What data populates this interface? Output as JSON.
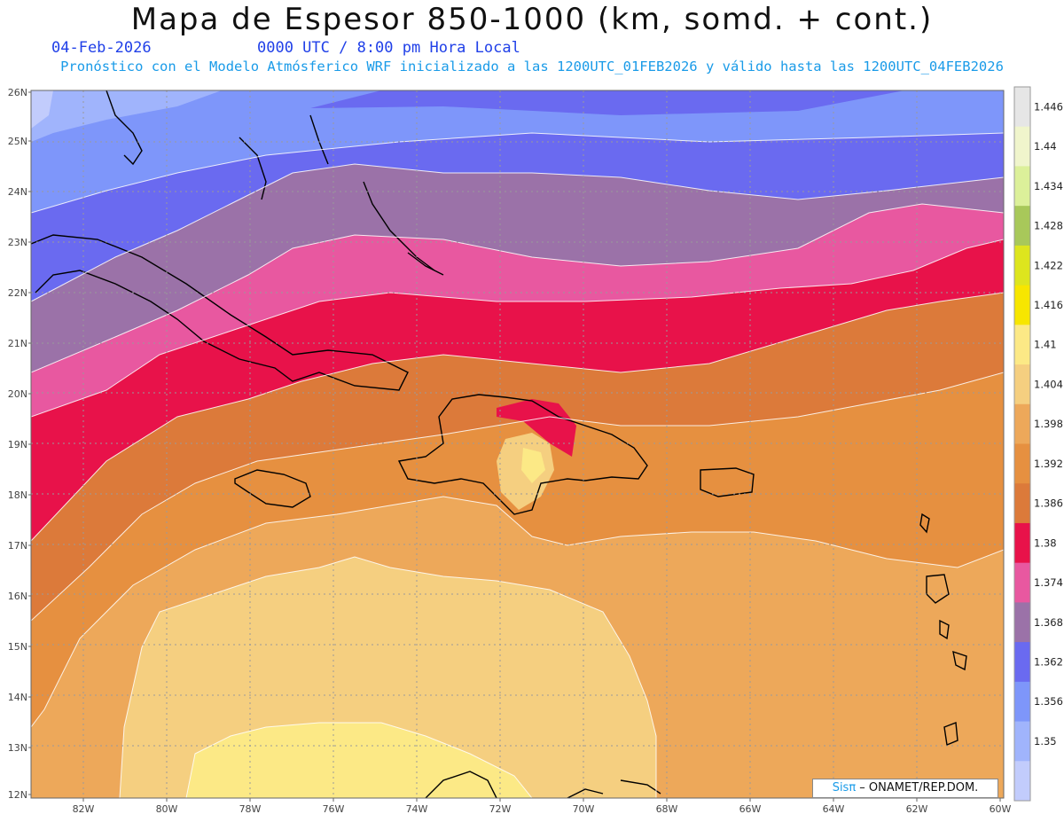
{
  "header": {
    "title": "Mapa de Espesor 850-1000 (km, somd. + cont.)",
    "date": "04-Feb-2026",
    "time": "0000 UTC / 8:00 pm Hora Local",
    "subtitle": "Pronóstico con el Modelo Atmósferico WRF inicializado a las 1200UTC_01FEB2026 y válido hasta las  1200UTC_04FEB2026"
  },
  "map": {
    "lat_labels": [
      "26N",
      "25N",
      "24N",
      "23N",
      "22N",
      "21N",
      "20N",
      "19N",
      "18N",
      "17N",
      "16N",
      "15N",
      "14N",
      "13N",
      "12N"
    ],
    "lon_labels": [
      "82W",
      "80W",
      "78W",
      "76W",
      "74W",
      "72W",
      "70W",
      "68W",
      "66W",
      "64W",
      "62W",
      "60W"
    ],
    "lat_range": [
      12,
      26
    ],
    "lon_range": [
      -83.2,
      -60
    ],
    "grid": "dotted",
    "coastline_color": "#000000"
  },
  "colorbar": {
    "labels": [
      "1.446",
      "1.44",
      "1.434",
      "1.428",
      "1.422",
      "1.416",
      "1.41",
      "1.404",
      "1.398",
      "1.392",
      "1.386",
      "1.38",
      "1.374",
      "1.368",
      "1.362",
      "1.356",
      "1.35"
    ],
    "colors": [
      "#e6e6e6",
      "#f0f5cc",
      "#dcf09a",
      "#a8c85a",
      "#dde51e",
      "#f7e600",
      "#fce986",
      "#f5cf80",
      "#eda85a",
      "#e69040",
      "#dc7a3a",
      "#e8124a",
      "#e858a0",
      "#9b72a8",
      "#6a6af0",
      "#7e96fa",
      "#a0b4fc",
      "#c2ccfc"
    ]
  },
  "credit": {
    "logo": "Sisπ",
    "text": " – ONAMET/REP.DOM."
  }
}
